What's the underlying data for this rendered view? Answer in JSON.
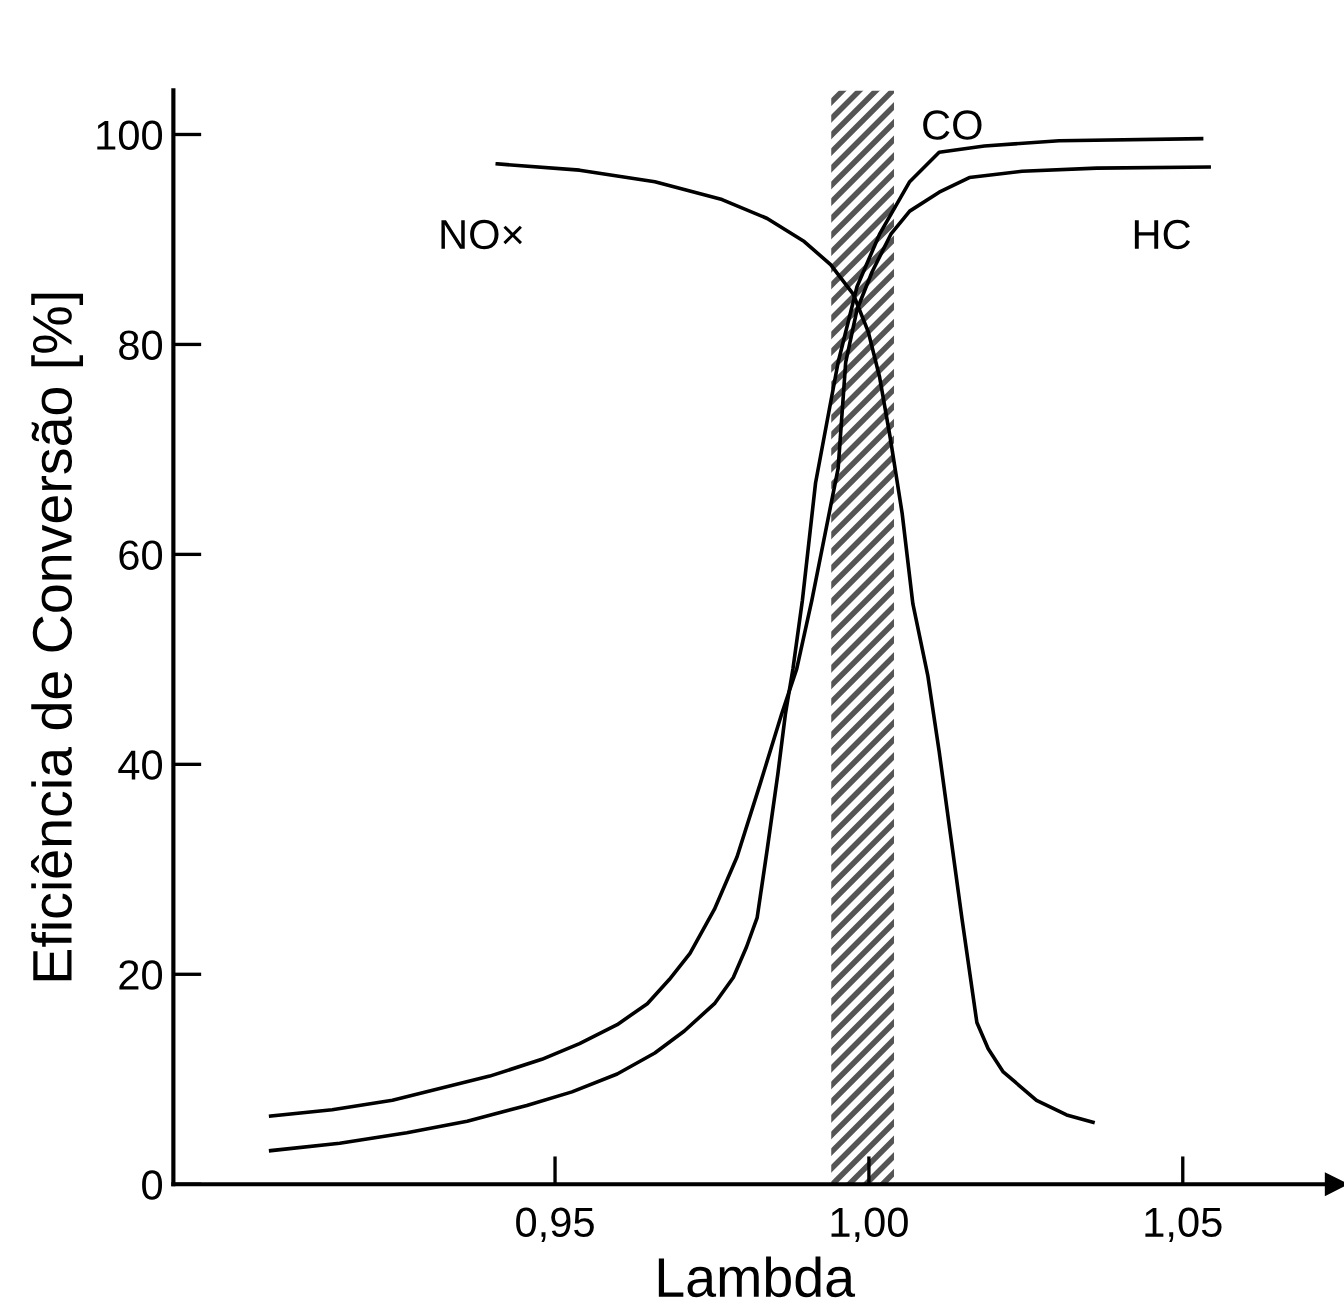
{
  "chart_data": {
    "type": "line",
    "xlabel": "Lambda",
    "ylabel": "Eficiência de Conversão [%]",
    "xlim": [
      0.8892,
      1.0744
    ],
    "ylim": [
      0,
      104.2
    ],
    "xticks": [
      {
        "value": 0.95,
        "label": "0,95"
      },
      {
        "value": 1.0,
        "label": "1,00"
      },
      {
        "value": 1.05,
        "label": "1,05"
      }
    ],
    "yticks": [
      0,
      20,
      40,
      60,
      80,
      100
    ],
    "grid": false,
    "legend": false,
    "marker": "none",
    "line_style": "solid",
    "bands": [
      {
        "axis": "x",
        "from": 0.994,
        "to": 1.004,
        "color": "#555555"
      }
    ],
    "series": [
      {
        "name": "CO",
        "color": "#000000",
        "x": [
          0.9047,
          0.9157,
          0.9264,
          0.936,
          0.9455,
          0.9527,
          0.9599,
          0.9659,
          0.9706,
          0.9754,
          0.9784,
          0.9805,
          0.9822,
          0.9838,
          0.9855,
          0.9867,
          0.9879,
          0.9894,
          0.9915,
          0.9951,
          0.9981,
          1.0017,
          1.0065,
          1.0112,
          1.0184,
          1.0303,
          1.053
        ],
        "values": [
          3.2,
          3.9,
          4.9,
          6.0,
          7.5,
          8.8,
          10.5,
          12.5,
          14.6,
          17.2,
          19.7,
          22.6,
          25.4,
          31.9,
          39.1,
          44.8,
          49.1,
          55.6,
          66.8,
          78.3,
          85.5,
          90.5,
          95.5,
          98.3,
          98.9,
          99.4,
          99.6
        ]
      },
      {
        "name": "HC",
        "color": "#000000",
        "x": [
          0.9047,
          0.9145,
          0.9241,
          0.9396,
          0.9479,
          0.9539,
          0.9599,
          0.9647,
          0.9682,
          0.9715,
          0.9754,
          0.979,
          0.9826,
          0.9861,
          0.9885,
          0.9909,
          0.9951,
          0.9963,
          0.9981,
          1.0005,
          1.0035,
          1.0065,
          1.0112,
          1.016,
          1.0244,
          1.0363,
          1.0542
        ],
        "values": [
          6.5,
          7.1,
          8.0,
          10.3,
          11.9,
          13.4,
          15.2,
          17.2,
          19.5,
          22.0,
          26.2,
          31.2,
          38.0,
          44.8,
          49.1,
          55.6,
          68.2,
          78.3,
          83.3,
          86.9,
          90.5,
          92.7,
          94.5,
          95.9,
          96.5,
          96.8,
          96.9
        ]
      },
      {
        "name": "NO×",
        "color": "#000000",
        "x": [
          0.9408,
          0.9539,
          0.9659,
          0.9766,
          0.9838,
          0.9897,
          0.9939,
          0.9975,
          0.9999,
          1.0017,
          1.0034,
          1.0053,
          1.007,
          1.0094,
          1.0112,
          1.013,
          1.0148,
          1.016,
          1.0172,
          1.019,
          1.0214,
          1.0267,
          1.0315,
          1.0357
        ],
        "values": [
          97.2,
          96.6,
          95.5,
          93.8,
          92.0,
          89.8,
          87.6,
          84.8,
          81.2,
          76.9,
          71.1,
          63.9,
          55.3,
          48.4,
          41.2,
          33.3,
          25.4,
          20.4,
          15.4,
          12.9,
          10.7,
          8.0,
          6.6,
          5.9
        ]
      }
    ]
  }
}
